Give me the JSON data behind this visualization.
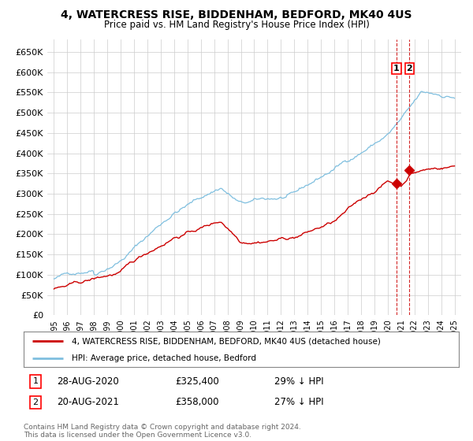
{
  "title": "4, WATERCRESS RISE, BIDDENHAM, BEDFORD, MK40 4US",
  "subtitle": "Price paid vs. HM Land Registry's House Price Index (HPI)",
  "ylim": [
    0,
    680000
  ],
  "yticks": [
    0,
    50000,
    100000,
    150000,
    200000,
    250000,
    300000,
    350000,
    400000,
    450000,
    500000,
    550000,
    600000,
    650000
  ],
  "hpi_color": "#7fbfdf",
  "price_color": "#cc0000",
  "grid_color": "#cccccc",
  "bg_color": "#ffffff",
  "legend_label_red": "4, WATERCRESS RISE, BIDDENHAM, BEDFORD, MK40 4US (detached house)",
  "legend_label_blue": "HPI: Average price, detached house, Bedford",
  "annotation1_label": "1",
  "annotation1_date": "28-AUG-2020",
  "annotation1_price": "£325,400",
  "annotation1_hpi": "29% ↓ HPI",
  "annotation1_year": 2020.65,
  "annotation1_value": 325400,
  "annotation2_label": "2",
  "annotation2_date": "20-AUG-2021",
  "annotation2_price": "£358,000",
  "annotation2_hpi": "27% ↓ HPI",
  "annotation2_year": 2021.63,
  "annotation2_value": 358000,
  "footer": "Contains HM Land Registry data © Crown copyright and database right 2024.\nThis data is licensed under the Open Government Licence v3.0."
}
